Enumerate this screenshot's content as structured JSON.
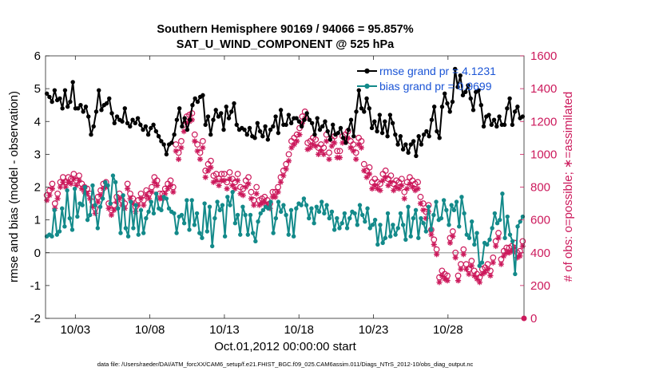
{
  "chart_data": {
    "type": "line",
    "title": "Southern Hemisphere 90169 / 94066 = 95.857%",
    "subtitle": "SAT_U_WIND_COMPONENT @ 525 hPa",
    "xlabel": "Oct.01,2012 00:00:00 start",
    "ylabel": "rmse and bias (model - observation)",
    "y2label": "# of obs: o=possible; ∗=assimilated",
    "x_start_day": 1,
    "x_end_day": 33.1,
    "x_tick_days": [
      3,
      8,
      13,
      18,
      23,
      28
    ],
    "x_tick_labels": [
      "10/03",
      "10/08",
      "10/13",
      "10/18",
      "10/23",
      "10/28"
    ],
    "ylim": [
      -2,
      6
    ],
    "y_ticks": [
      "-2",
      "-1",
      "0",
      "1",
      "2",
      "3",
      "4",
      "5",
      "6"
    ],
    "y2lim": [
      0,
      1600
    ],
    "y2_ticks": [
      "0",
      "200",
      "400",
      "600",
      "800",
      "1000",
      "1200",
      "1400",
      "1600"
    ],
    "grid": false,
    "legend_position": "top-right",
    "zero_line": true,
    "colors": {
      "rmse": "#000000",
      "bias": "#138a8a",
      "obs": "#cc1a5c",
      "zero": "#b0b0b0",
      "legend_text": "#1a54d6"
    },
    "series": [
      {
        "name": "rmse grand pr = 4.1231",
        "axis": "left",
        "color": "#000000",
        "values": [
          4.85,
          4.75,
          4.6,
          4.95,
          4.65,
          4.7,
          4.4,
          4.95,
          4.45,
          4.6,
          5.2,
          4.4,
          4.4,
          4.5,
          4.3,
          4.45,
          4.15,
          3.6,
          3.85,
          4.3,
          4.95,
          4.35,
          4.5,
          4.55,
          4.7,
          4.25,
          3.95,
          4.15,
          4.05,
          4,
          4.4,
          3.95,
          3.85,
          4.05,
          3.95,
          4.1,
          3.9,
          3.75,
          3.85,
          3.6,
          3.8,
          3.9,
          3.7,
          3.55,
          3.4,
          3.3,
          3.0,
          3.3,
          3.35,
          3.6,
          4.05,
          4.4,
          3.85,
          4.1,
          3.75,
          4.05,
          4.5,
          4.7,
          4.6,
          4.75,
          4.8,
          3.9,
          4.15,
          3.6,
          4.05,
          4.35,
          4.15,
          4.25,
          3.75,
          4.45,
          4.1,
          4.3,
          4.55,
          3.9,
          3.75,
          3.8,
          3.75,
          3.6,
          3.8,
          3.55,
          3.5,
          3.95,
          3.7,
          3.55,
          3.85,
          3.45,
          3.75,
          3.85,
          4.15,
          3.65,
          4.35,
          3.9,
          3.9,
          4.2,
          3.95,
          4.1,
          4.1,
          4.0,
          3.85,
          4.05,
          4.25,
          4.05,
          3.95,
          3.6,
          4.1,
          3.75,
          3.85,
          4.0,
          3.7,
          3.45,
          3.9,
          3.6,
          3.65,
          3.8,
          3.5,
          3.35,
          3.75,
          4.05,
          3.55,
          4.3,
          4.95,
          4.4,
          4.3,
          4.7,
          4.4,
          3.8,
          4.0,
          3.7,
          4.2,
          3.65,
          4.0,
          3.55,
          4.2,
          3.95,
          3.6,
          3.3,
          3.55,
          3.15,
          3.3,
          3.05,
          3.3,
          3.4,
          2.95,
          3.55,
          3.3,
          3.6,
          3.7,
          3.55,
          4.05,
          4.45,
          3.7,
          3.5,
          4.45,
          4.85,
          4.55,
          4.3,
          4.6,
          5.6,
          5.05,
          5.4,
          4.8,
          4.9,
          5.1,
          4.7,
          4.35,
          4.9,
          4.95,
          4.5,
          3.85,
          4.15,
          4.2,
          3.9,
          4.05,
          3.85,
          4.15,
          3.9,
          3.9,
          4.4,
          4.7,
          3.9,
          4.3,
          4.45,
          4.1,
          4.15
        ]
      },
      {
        "name": "bias grand pr = 0.9699",
        "axis": "left",
        "color": "#138a8a",
        "values": [
          0.5,
          0.55,
          0.5,
          1.3,
          0.55,
          0.65,
          1.35,
          0.8,
          1.9,
          1.05,
          0.7,
          1.95,
          1.1,
          1.5,
          1.45,
          2.0,
          1.0,
          1.15,
          2.05,
          1.45,
          0.75,
          1.4,
          1.65,
          2.15,
          2.05,
          1.5,
          2.35,
          2.15,
          1.35,
          0.6,
          1.75,
          0.75,
          0.5,
          1.55,
          0.75,
          1.45,
          0.55,
          1.3,
          0.6,
          1.05,
          1.25,
          1.55,
          1.2,
          1.8,
          1.35,
          1.3,
          1.7,
          1.65,
          1.35,
          1.25,
          1.2,
          0.6,
          1.1,
          1.15,
          0.9,
          1.6,
          0.7,
          1.6,
          0.85,
          1.2,
          0.6,
          0.45,
          1.5,
          0.65,
          1.4,
          0.2,
          1.05,
          1.55,
          1.3,
          1.45,
          0.5,
          1.7,
          1.45,
          1.85,
          0.9,
          1.15,
          0.55,
          1.4,
          1.15,
          0.55,
          1.15,
          0.6,
          0.35,
          0.95,
          1.2,
          1.3,
          1.4,
          1.35,
          1.55,
          0.6,
          1.05,
          1.55,
          1.25,
          1.45,
          1.15,
          0.55,
          1.3,
          0.5,
          1.35,
          1.5,
          1.45,
          1.65,
          1.45,
          1.05,
          1.35,
          0.9,
          1.4,
          1.25,
          1.55,
          1.2,
          1.45,
          1.05,
          1.25,
          0.7,
          1.05,
          0.75,
          0.9,
          1.2,
          0.75,
          1.05,
          1.25,
          1.2,
          0.85,
          1.45,
          1.15,
          0.95,
          1.35,
          0.75,
          0.85,
          1.0,
          0.25,
          0.85,
          0.3,
          0.45,
          1.2,
          0.5,
          0.85,
          0.55,
          0.75,
          1.2,
          0.85,
          0.4,
          1.4,
          0.5,
          1.05,
          1.3,
          0.45,
          1.05,
          0.9,
          0.65,
          1.4,
          0.7,
          1.15,
          1.55,
          1.0,
          1.05,
          1.6,
          1.3,
          0.85,
          1.45,
          1.3,
          1.55,
          0.8,
          1.7,
          1.2,
          0.55,
          0.45,
          0.95,
          0.25,
          0.6,
          -0.4,
          -0.3,
          0.3,
          0.25,
          0.4,
          0.75,
          1.2,
          0.9,
          1.0,
          1.8,
          0.45,
          1.1,
          0.55,
          0.35,
          -0.65,
          0.8,
          0.95,
          1.1
        ]
      },
      {
        "name": "possible",
        "axis": "right",
        "marker": "circle",
        "color": "#cc1a5c",
        "values": [
          750,
          780,
          820,
          700,
          760,
          830,
          860,
          830,
          860,
          850,
          880,
          840,
          870,
          820,
          800,
          790,
          760,
          710,
          670,
          740,
          780,
          820,
          830,
          700,
          660,
          690,
          740,
          760,
          720,
          700,
          820,
          760,
          730,
          680,
          720,
          760,
          720,
          780,
          760,
          800,
          860,
          840,
          760,
          760,
          790,
          820,
          840,
          800,
          1060,
          1010,
          1080,
          1180,
          1230,
          1240,
          1250,
          1120,
          1060,
          1010,
          1080,
          900,
          940,
          960,
          870,
          880,
          850,
          880,
          880,
          830,
          890,
          850,
          830,
          880,
          800,
          790,
          840,
          860,
          770,
          720,
          800,
          720,
          730,
          740,
          720,
          700,
          770,
          770,
          800,
          860,
          900,
          940,
          1000,
          1080,
          1100,
          1120,
          1160,
          1230,
          1260,
          1070,
          1080,
          1100,
          1090,
          1040,
          1060,
          1040,
          1120,
          1010,
          1090,
          1110,
          1020,
          1020,
          1110,
          1120,
          1140,
          1080,
          1060,
          1010,
          1100,
          1080,
          940,
          900,
          920,
          830,
          850,
          830,
          820,
          880,
          900,
          850,
          870,
          820,
          840,
          830,
          850,
          770,
          830,
          860,
          840,
          820,
          830,
          740,
          700,
          650,
          690,
          540,
          480,
          420,
          250,
          290,
          270,
          260,
          490,
          530,
          400,
          260,
          330,
          420,
          330,
          300,
          350,
          290,
          270,
          250,
          300,
          310,
          330,
          290,
          370,
          470,
          520,
          360,
          410,
          430,
          430,
          440,
          460,
          400,
          410,
          470
        ]
      },
      {
        "name": "assimilated",
        "axis": "right",
        "marker": "asterisk",
        "color": "#cc1a5c",
        "values": [
          720,
          750,
          790,
          670,
          730,
          800,
          830,
          800,
          830,
          820,
          850,
          810,
          840,
          790,
          770,
          760,
          730,
          680,
          640,
          710,
          750,
          790,
          800,
          670,
          630,
          660,
          710,
          730,
          690,
          670,
          790,
          730,
          700,
          650,
          690,
          730,
          690,
          750,
          730,
          770,
          830,
          810,
          730,
          730,
          760,
          790,
          810,
          770,
          1020,
          970,
          1040,
          1140,
          1190,
          1200,
          1210,
          1080,
          1020,
          970,
          1040,
          860,
          900,
          920,
          830,
          840,
          810,
          840,
          840,
          790,
          850,
          810,
          790,
          840,
          760,
          750,
          800,
          820,
          730,
          690,
          760,
          690,
          700,
          710,
          690,
          670,
          740,
          740,
          770,
          830,
          870,
          910,
          960,
          1040,
          1060,
          1080,
          1120,
          1190,
          1220,
          1030,
          1040,
          1060,
          1050,
          1000,
          1020,
          1000,
          1080,
          970,
          1050,
          1070,
          980,
          980,
          1070,
          1080,
          1100,
          1040,
          1020,
          970,
          1060,
          1040,
          900,
          860,
          880,
          790,
          810,
          790,
          780,
          840,
          860,
          810,
          830,
          780,
          800,
          790,
          810,
          730,
          790,
          820,
          800,
          780,
          790,
          700,
          660,
          610,
          650,
          510,
          450,
          390,
          220,
          260,
          240,
          230,
          460,
          500,
          370,
          230,
          300,
          390,
          300,
          270,
          320,
          260,
          240,
          220,
          270,
          280,
          300,
          260,
          340,
          440,
          490,
          330,
          380,
          400,
          400,
          410,
          430,
          370,
          380,
          440
        ]
      }
    ]
  },
  "footer": "data file: /Users/raeder/DAI/ATM_forcXX/CAM6_setup/f.e21.FHIST_BGC.f09_025.CAM6assim.011/Diags_NTrS_2012-10/obs_diag_output.nc"
}
